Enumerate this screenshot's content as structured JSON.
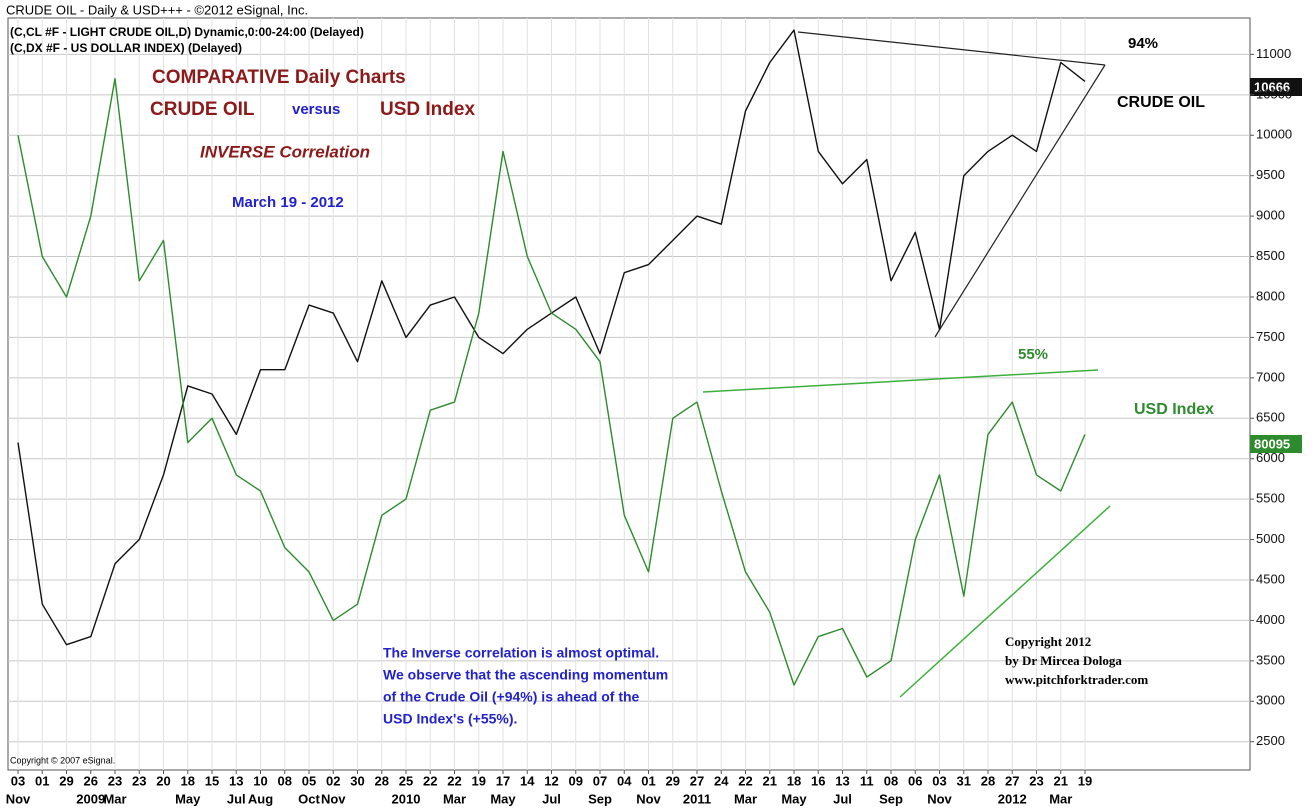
{
  "chart_data": {
    "type": "line",
    "title": "CRUDE OIL - Daily & USD+++ - ©2012 eSignal, Inc.",
    "subtitles": [
      "(C,CL #F - LIGHT CRUDE OIL,D) Dynamic,0:00-24:00 (Delayed)",
      "(C,DX #F - US DOLLAR INDEX)  (Delayed)"
    ],
    "headline": [
      "COMPARATIVE Daily Charts",
      "CRUDE OIL",
      "versus",
      "USD Index"
    ],
    "correlation": "INVERSE Correlation",
    "date": "March 19 - 2012",
    "annotations": [
      "94%",
      "CRUDE OIL",
      "55%",
      "USD Index"
    ],
    "note": [
      "The Inverse correlation is almost optimal.",
      "We observe that the ascending momentum",
      "of the  Crude Oil (+94%) is ahead of the",
      "USD Index's (+55%)."
    ],
    "credits": [
      "Copyright 2012",
      "by Dr Mircea Dologa",
      "www.pitchforktrader.com"
    ],
    "footer": "Copyright © 2007 eSignal.",
    "last_price_labels": [
      "10666",
      "80095"
    ],
    "categories": [
      "03",
      "01",
      "29",
      "26",
      "23",
      "23",
      "20",
      "18",
      "15",
      "13",
      "10",
      "08",
      "05",
      "02",
      "30",
      "28",
      "25",
      "22",
      "22",
      "19",
      "17",
      "14",
      "12",
      "09",
      "07",
      "04",
      "01",
      "29",
      "27",
      "24",
      "22",
      "21",
      "18",
      "16",
      "13",
      "11",
      "08",
      "06",
      "03",
      "31",
      "28",
      "27",
      "23",
      "21",
      "19"
    ],
    "month_labels": [
      "Nov",
      null,
      null,
      "2009",
      "Mar",
      null,
      null,
      "May",
      null,
      "Jul",
      "Aug",
      null,
      "Oct",
      "Nov",
      null,
      null,
      "2010",
      null,
      "Mar",
      null,
      "May",
      null,
      "Jul",
      null,
      "Sep",
      null,
      "Nov",
      null,
      "2011",
      null,
      "Mar",
      null,
      "May",
      null,
      "Jul",
      null,
      "Sep",
      null,
      "Nov",
      null,
      null,
      "2012",
      null,
      "Mar",
      null
    ],
    "series": [
      {
        "name": "CRUDE OIL",
        "color": "#111111",
        "values": [
          6200,
          4200,
          3700,
          3800,
          4700,
          5000,
          5800,
          6900,
          6800,
          6300,
          7100,
          7100,
          7900,
          7800,
          7200,
          8200,
          7500,
          7900,
          8000,
          7500,
          7300,
          7600,
          7800,
          8000,
          7300,
          8300,
          8400,
          8700,
          9000,
          8900,
          10300,
          10900,
          11300,
          9800,
          9400,
          9700,
          8200,
          8800,
          7600,
          9500,
          9800,
          10000,
          9800,
          10900,
          10666
        ]
      },
      {
        "name": "USD Index",
        "color": "#2e8b2e",
        "values": [
          10000,
          8500,
          8000,
          9000,
          10700,
          8200,
          8700,
          6200,
          6500,
          5800,
          5600,
          4900,
          4600,
          4000,
          4200,
          5300,
          5500,
          6600,
          6700,
          7800,
          9800,
          8500,
          7800,
          7600,
          7200,
          5300,
          4600,
          6500,
          6700,
          5600,
          4600,
          4100,
          3200,
          3800,
          3900,
          3300,
          3500,
          5000,
          5800,
          4300,
          6300,
          6700,
          5800,
          5600,
          6300
        ]
      }
    ],
    "ylim": [
      2150,
      11450
    ],
    "yticks": [
      2500,
      3000,
      3500,
      4000,
      4500,
      5000,
      5500,
      6000,
      6500,
      7000,
      7500,
      8000,
      8500,
      9000,
      9500,
      10000,
      10500,
      11000
    ],
    "grid": true
  }
}
